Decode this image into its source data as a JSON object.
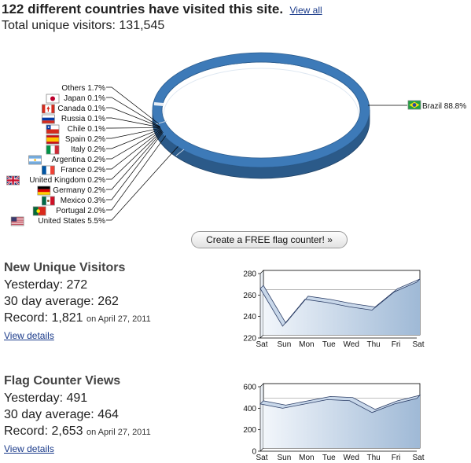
{
  "header": {
    "headline": "122 different countries have visited this site.",
    "view_all": "View all",
    "total": "Total unique visitors: 131,545"
  },
  "cta_label": "Create a FREE flag counter! »",
  "colors": {
    "ring": "#3d7ab8",
    "ring_dark": "#2b5a89",
    "fill_top": "#9fb9d6",
    "fill_bottom": "#f2f6fb",
    "line": "#2c3e66"
  },
  "stats": [
    {
      "title": "New Unique Visitors",
      "yesterday": "Yesterday: 272",
      "average": "30 day average: 262",
      "record": "Record: 1,821",
      "record_date": "on April 27, 2011",
      "details": "View details"
    },
    {
      "title": "Flag Counter Views",
      "yesterday": "Yesterday: 491",
      "average": "30 day average: 464",
      "record": "Record: 2,653",
      "record_date": "on April 27, 2011",
      "details": "View details"
    }
  ],
  "chart_data": [
    {
      "type": "pie",
      "series": [
        {
          "name": "Brazil",
          "label": "88.8%",
          "value": 88.8,
          "flag": "brazil-flag-icon"
        },
        {
          "name": "United States",
          "label": "5.5%",
          "value": 5.5,
          "flag": "usa-flag-icon"
        },
        {
          "name": "Portugal",
          "label": "2.0%",
          "value": 2.0,
          "flag": "portugal-flag-icon"
        },
        {
          "name": "Mexico",
          "label": "0.3%",
          "value": 0.3,
          "flag": "mexico-flag-icon"
        },
        {
          "name": "Germany",
          "label": "0.2%",
          "value": 0.2,
          "flag": "germany-flag-icon"
        },
        {
          "name": "United Kingdom",
          "label": "0.2%",
          "value": 0.2,
          "flag": "uk-flag-icon"
        },
        {
          "name": "France",
          "label": "0.2%",
          "value": 0.2,
          "flag": "france-flag-icon"
        },
        {
          "name": "Argentina",
          "label": "0.2%",
          "value": 0.2,
          "flag": "argentina-flag-icon"
        },
        {
          "name": "Italy",
          "label": "0.2%",
          "value": 0.2,
          "flag": "italy-flag-icon"
        },
        {
          "name": "Spain",
          "label": "0.2%",
          "value": 0.2,
          "flag": "spain-flag-icon"
        },
        {
          "name": "Chile",
          "label": "0.1%",
          "value": 0.1,
          "flag": "chile-flag-icon"
        },
        {
          "name": "Russia",
          "label": "0.1%",
          "value": 0.1,
          "flag": "russia-flag-icon"
        },
        {
          "name": "Canada",
          "label": "0.1%",
          "value": 0.1,
          "flag": "canada-flag-icon"
        },
        {
          "name": "Japan",
          "label": "0.1%",
          "value": 0.1,
          "flag": "japan-flag-icon"
        },
        {
          "name": "Others",
          "label": "1.7%",
          "value": 1.7,
          "flag": ""
        }
      ]
    },
    {
      "type": "area",
      "categories": [
        "Sat",
        "Sun",
        "Mon",
        "Tue",
        "Wed",
        "Thu",
        "Fri",
        "Sat"
      ],
      "values": [
        266,
        231,
        256,
        253,
        249,
        246,
        263,
        272
      ],
      "ylim": [
        220,
        280
      ],
      "yticks": [
        "220",
        "240",
        "260",
        "280"
      ],
      "average": 262
    },
    {
      "type": "area",
      "categories": [
        "Sat",
        "Sun",
        "Mon",
        "Tue",
        "Wed",
        "Thu",
        "Fri",
        "Sat"
      ],
      "values": [
        440,
        400,
        440,
        480,
        470,
        360,
        440,
        491
      ],
      "ylim": [
        0,
        600
      ],
      "yticks": [
        "0",
        "200",
        "400",
        "600"
      ],
      "average": 464
    }
  ]
}
